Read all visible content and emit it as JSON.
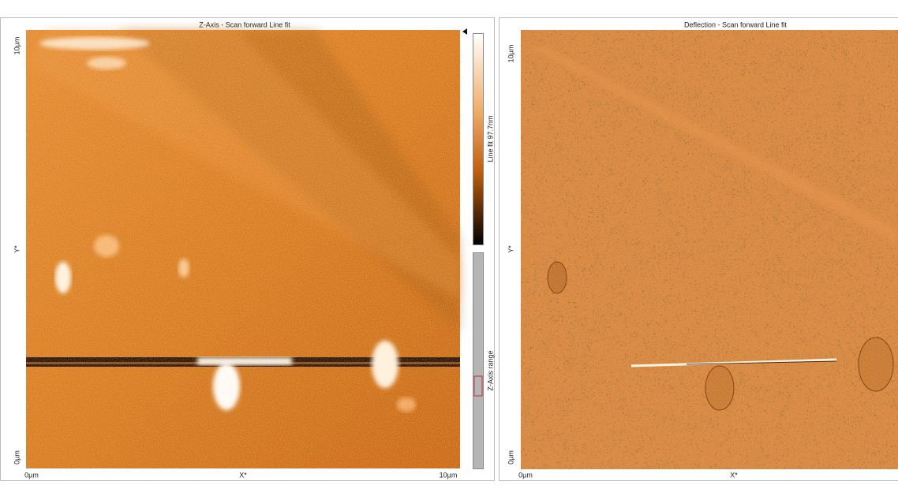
{
  "left_panel": {
    "title": "Z-Axis - Scan forward   Line fit",
    "y_top": "10µm",
    "y_mid": "Y*",
    "y_bottom": "0µm",
    "x_left": "0µm",
    "x_mid": "X*",
    "x_right": "10µm",
    "colorbar_label": "Line fit 97.7nm",
    "range_label": "Z-Axis range"
  },
  "right_panel": {
    "title": "Deflection - Scan forward   Line fit",
    "y_top": "10µm",
    "y_mid": "Y*",
    "y_bottom": "0µm",
    "x_left": "0µm",
    "x_mid": "X*"
  }
}
